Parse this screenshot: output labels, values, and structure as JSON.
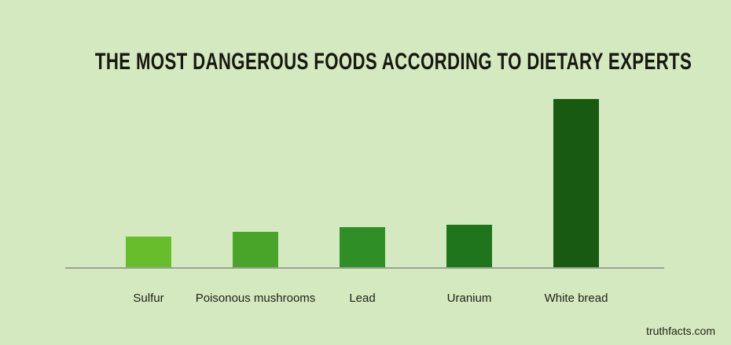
{
  "page": {
    "background_color": "#d5e9c0",
    "title_color": "#15190f",
    "label_color": "#1c2316",
    "watermark_color": "#1c2316"
  },
  "chart_data": {
    "type": "bar",
    "title": "THE MOST DANGEROUS FOODS ACCORDING TO DIETARY EXPERTS",
    "categories": [
      "Sulfur",
      "Poisonous mushrooms",
      "Lead",
      "Uranium",
      "White bread"
    ],
    "values": [
      18,
      21,
      24,
      25,
      100
    ],
    "xlabel": "",
    "ylabel": "",
    "ylim": [
      0,
      100
    ],
    "grid": false,
    "legend": false,
    "axis_ticks": "none",
    "bar_colors": [
      "#68bd2c",
      "#49a42a",
      "#2f8e26",
      "#1f751c",
      "#195a13"
    ],
    "axis_line_color": "#9aa394"
  },
  "footer": {
    "watermark": "truthfacts.com"
  }
}
